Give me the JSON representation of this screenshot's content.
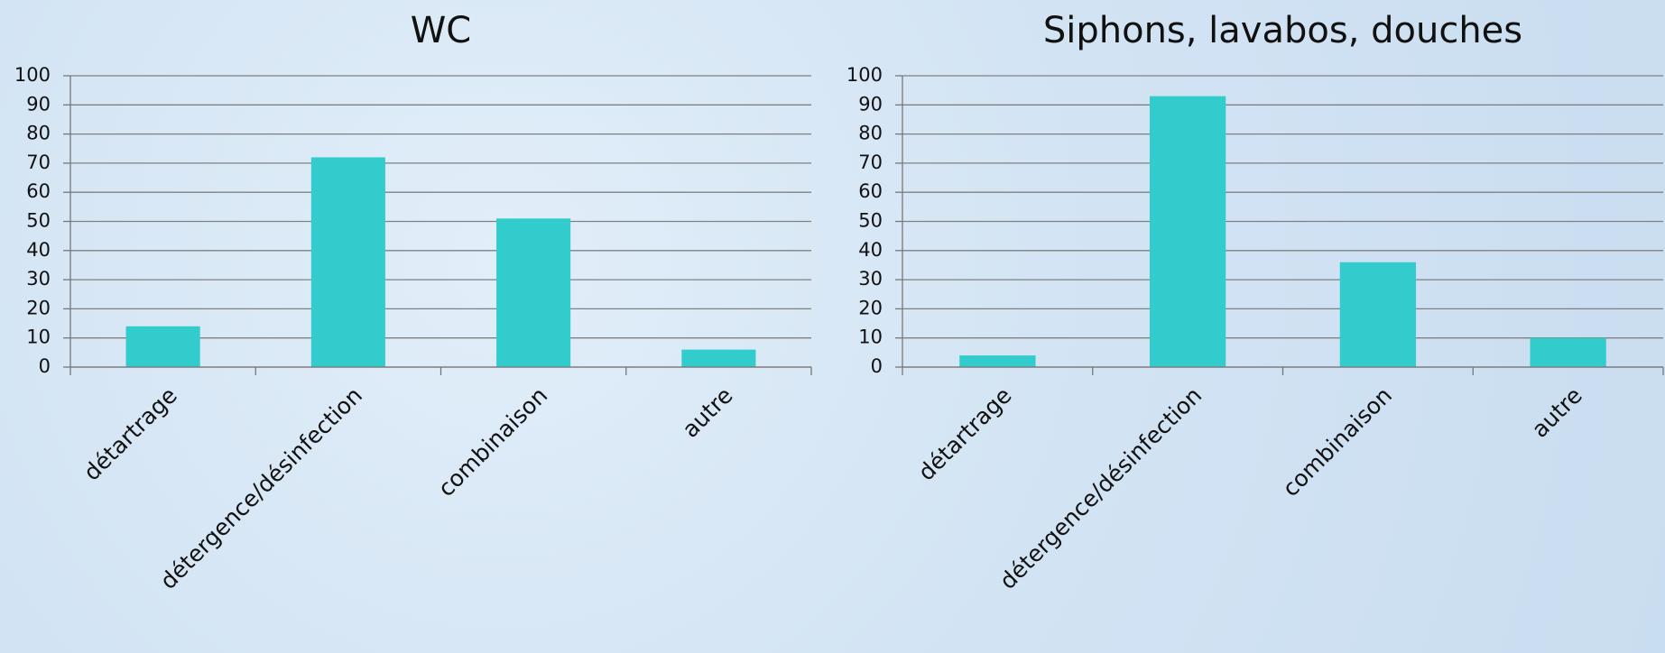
{
  "chart_data": [
    {
      "type": "bar",
      "title": "WC",
      "categories": [
        "détartrage",
        "détergence/désinfection",
        "combinaison",
        "autre"
      ],
      "values": [
        14,
        72,
        51,
        6
      ],
      "color": "#33cccc",
      "ylim": [
        0,
        100
      ],
      "yticks": [
        0,
        10,
        20,
        30,
        40,
        50,
        60,
        70,
        80,
        90,
        100
      ],
      "grid": true
    },
    {
      "type": "bar",
      "title": "Siphons, lavabos, douches",
      "categories": [
        "détartrage",
        "détergence/désinfection",
        "combinaison",
        "autre"
      ],
      "values": [
        4,
        93,
        36,
        10
      ],
      "color": "#33cccc",
      "ylim": [
        0,
        100
      ],
      "yticks": [
        0,
        10,
        20,
        30,
        40,
        50,
        60,
        70,
        80,
        90,
        100
      ],
      "grid": true
    }
  ]
}
